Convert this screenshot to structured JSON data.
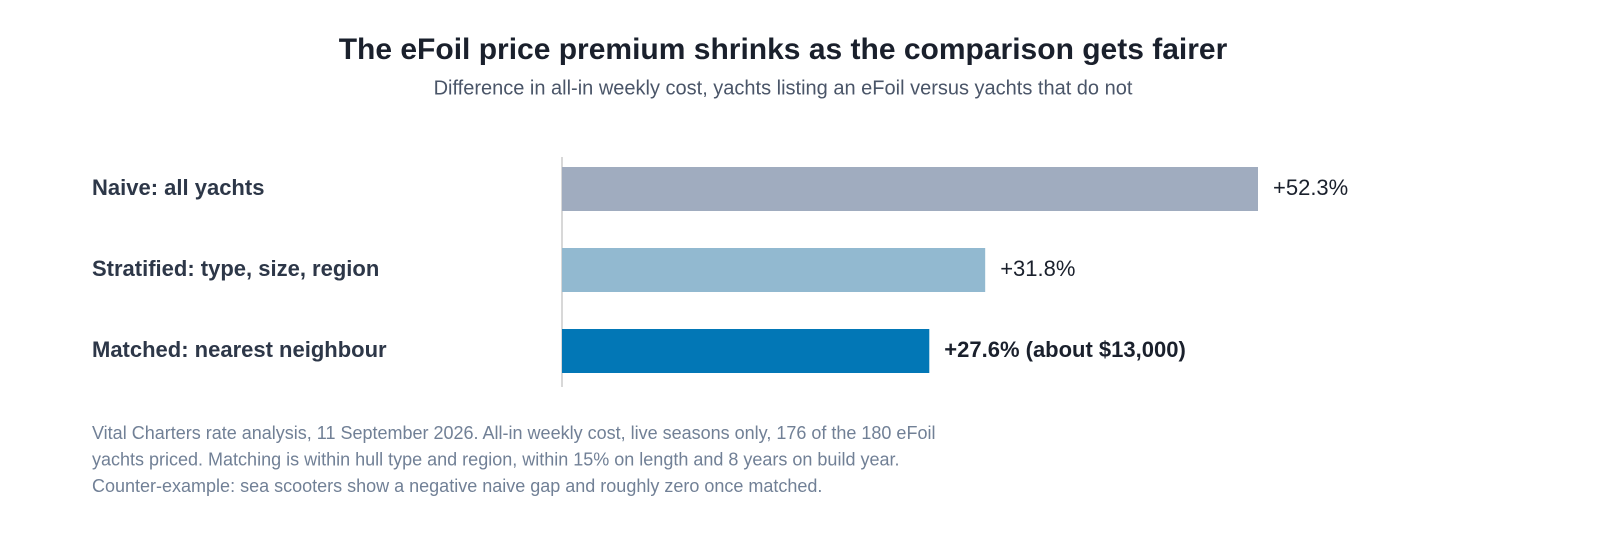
{
  "chart_data": {
    "type": "bar",
    "orientation": "horizontal",
    "title": "The eFoil price premium shrinks as the comparison gets fairer",
    "subtitle": "Difference in all-in weekly cost, yachts listing an eFoil versus yachts that do not",
    "categories": [
      "Naive: all yachts",
      "Stratified: type, size, region",
      "Matched: nearest neighbour"
    ],
    "values": [
      52.3,
      31.8,
      27.6
    ],
    "value_labels": [
      "+52.3%",
      "+31.8%",
      "+27.6% (about $13,000)"
    ],
    "colors": [
      "#a0acbf",
      "#92b9d0",
      "#0277b6"
    ],
    "notes": [
      "Vital Charters rate analysis, 11 September 2026. All-in weekly cost, live seasons only, 176 of the 180 eFoil",
      "yachts priced. Matching is within hull type and region, within 15% on length and 8 years on build year.",
      "Counter-example: sea scooters show a negative naive gap and roughly zero once matched."
    ]
  }
}
